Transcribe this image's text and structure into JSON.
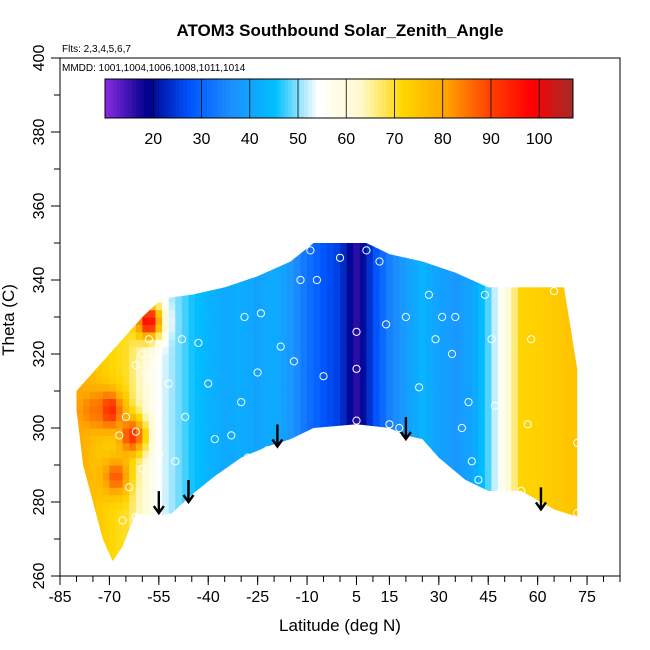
{
  "chart_data": {
    "type": "heatmap",
    "title": "ATOM3 Southbound Solar_Zenith_Angle",
    "subtitle_flights": "Flts: 2,3,4,5,6,7",
    "subtitle_dates": "MMDD: 1001,1004,1006,1008,1011,1014",
    "xlabel": "Latitude (deg N)",
    "ylabel": "Theta (C)",
    "xlim": [
      -85,
      85
    ],
    "ylim": [
      260,
      400
    ],
    "x_ticks": [
      "-85",
      "-70",
      "-55",
      "-40",
      "-25",
      "-10",
      "5",
      "15",
      "30",
      "45",
      "60",
      "75"
    ],
    "x_tick_values": [
      -85,
      -70,
      -55,
      -40,
      -25,
      -10,
      5,
      15,
      30,
      45,
      60,
      75
    ],
    "y_ticks": [
      "260",
      "280",
      "300",
      "320",
      "340",
      "360",
      "380",
      "400"
    ],
    "y_tick_values": [
      260,
      280,
      300,
      320,
      340,
      360,
      380,
      400
    ],
    "colorbar": {
      "range": [
        10,
        107
      ],
      "tick_labels": [
        "20",
        "30",
        "40",
        "50",
        "60",
        "70",
        "80",
        "90",
        "100"
      ],
      "tick_values": [
        20,
        30,
        40,
        50,
        60,
        70,
        80,
        90,
        100
      ],
      "colors": [
        "#8a2be2",
        "#00008b",
        "#0055ff",
        "#1e90ff",
        "#00bfff",
        "#ffffff",
        "#fffacd",
        "#ffd700",
        "#ffa500",
        "#ff4500",
        "#ff0000",
        "#a52a2a"
      ]
    },
    "sza_profile": [
      {
        "lat": -70,
        "sza": 72
      },
      {
        "lat": -65,
        "sza": 70
      },
      {
        "lat": -60,
        "sza": 62
      },
      {
        "lat": -55,
        "sza": 54
      },
      {
        "lat": -50,
        "sza": 50
      },
      {
        "lat": -45,
        "sza": 46
      },
      {
        "lat": -40,
        "sza": 43
      },
      {
        "lat": -35,
        "sza": 41
      },
      {
        "lat": -30,
        "sza": 42
      },
      {
        "lat": -25,
        "sza": 40
      },
      {
        "lat": -20,
        "sza": 42
      },
      {
        "lat": -15,
        "sza": 38
      },
      {
        "lat": -10,
        "sza": 32
      },
      {
        "lat": -5,
        "sza": 28
      },
      {
        "lat": 0,
        "sza": 25
      },
      {
        "lat": 5,
        "sza": 16
      },
      {
        "lat": 10,
        "sza": 26
      },
      {
        "lat": 15,
        "sza": 34
      },
      {
        "lat": 20,
        "sza": 39
      },
      {
        "lat": 25,
        "sza": 43
      },
      {
        "lat": 30,
        "sza": 40
      },
      {
        "lat": 35,
        "sza": 38
      },
      {
        "lat": 40,
        "sza": 40
      },
      {
        "lat": 45,
        "sza": 48
      },
      {
        "lat": 50,
        "sza": 58
      },
      {
        "lat": 55,
        "sza": 72
      },
      {
        "lat": 60,
        "sza": 73
      },
      {
        "lat": 65,
        "sza": 74
      },
      {
        "lat": 70,
        "sza": 75
      }
    ],
    "hotspots": [
      {
        "lat": -70,
        "theta": 305,
        "sza": 95
      },
      {
        "lat": -63,
        "theta": 298,
        "sza": 92
      },
      {
        "lat": -58,
        "theta": 329,
        "sza": 98
      },
      {
        "lat": -68,
        "theta": 287,
        "sza": 88
      },
      {
        "lat": -75,
        "theta": 305,
        "sza": 85
      }
    ],
    "domain_top": [
      {
        "lat": -68,
        "theta": 322
      },
      {
        "lat": -60,
        "theta": 330
      },
      {
        "lat": -54,
        "theta": 335
      },
      {
        "lat": -45,
        "theta": 336
      },
      {
        "lat": -35,
        "theta": 338
      },
      {
        "lat": -25,
        "theta": 341
      },
      {
        "lat": -15,
        "theta": 345
      },
      {
        "lat": -8,
        "theta": 350
      },
      {
        "lat": 8,
        "theta": 350
      },
      {
        "lat": 15,
        "theta": 347
      },
      {
        "lat": 25,
        "theta": 345
      },
      {
        "lat": 35,
        "theta": 342
      },
      {
        "lat": 45,
        "theta": 338
      },
      {
        "lat": 55,
        "theta": 338
      },
      {
        "lat": 68,
        "theta": 338
      },
      {
        "lat": 72,
        "theta": 316
      }
    ],
    "domain_bottom": [
      {
        "lat": 72,
        "theta": 276
      },
      {
        "lat": 65,
        "theta": 278
      },
      {
        "lat": 55,
        "theta": 283
      },
      {
        "lat": 45,
        "theta": 283
      },
      {
        "lat": 38,
        "theta": 286
      },
      {
        "lat": 30,
        "theta": 292
      },
      {
        "lat": 25,
        "theta": 297
      },
      {
        "lat": 20,
        "theta": 298
      },
      {
        "lat": 15,
        "theta": 300
      },
      {
        "lat": 5,
        "theta": 301
      },
      {
        "lat": -8,
        "theta": 300
      },
      {
        "lat": -15,
        "theta": 297
      },
      {
        "lat": -22,
        "theta": 295
      },
      {
        "lat": -30,
        "theta": 292
      },
      {
        "lat": -38,
        "theta": 287
      },
      {
        "lat": -45,
        "theta": 282
      },
      {
        "lat": -51,
        "theta": 277
      },
      {
        "lat": -56,
        "theta": 276
      },
      {
        "lat": -62,
        "theta": 277
      },
      {
        "lat": -66,
        "theta": 268
      },
      {
        "lat": -69,
        "theta": 264
      },
      {
        "lat": -72,
        "theta": 270
      },
      {
        "lat": -78,
        "theta": 290
      },
      {
        "lat": -80,
        "theta": 305
      },
      {
        "lat": -80,
        "theta": 310
      }
    ],
    "circles": [
      {
        "lat": -62,
        "theta": 276
      },
      {
        "lat": -64,
        "theta": 284
      },
      {
        "lat": -60,
        "theta": 289
      },
      {
        "lat": -55,
        "theta": 293
      },
      {
        "lat": -50,
        "theta": 291
      },
      {
        "lat": -47,
        "theta": 303
      },
      {
        "lat": -52,
        "theta": 312
      },
      {
        "lat": -58,
        "theta": 314
      },
      {
        "lat": -62,
        "theta": 317
      },
      {
        "lat": -55,
        "theta": 322
      },
      {
        "lat": -48,
        "theta": 324
      },
      {
        "lat": -43,
        "theta": 323
      },
      {
        "lat": -40,
        "theta": 312
      },
      {
        "lat": -38,
        "theta": 297
      },
      {
        "lat": -33,
        "theta": 298
      },
      {
        "lat": -30,
        "theta": 307
      },
      {
        "lat": -28,
        "theta": 292
      },
      {
        "lat": -22,
        "theta": 294
      },
      {
        "lat": -25,
        "theta": 315
      },
      {
        "lat": -29,
        "theta": 330
      },
      {
        "lat": -24,
        "theta": 331
      },
      {
        "lat": -18,
        "theta": 322
      },
      {
        "lat": -14,
        "theta": 318
      },
      {
        "lat": -12,
        "theta": 340
      },
      {
        "lat": -9,
        "theta": 348
      },
      {
        "lat": -7,
        "theta": 340
      },
      {
        "lat": -5,
        "theta": 314
      },
      {
        "lat": 0,
        "theta": 346
      },
      {
        "lat": 5,
        "theta": 316
      },
      {
        "lat": 5,
        "theta": 326
      },
      {
        "lat": 5,
        "theta": 302
      },
      {
        "lat": 8,
        "theta": 348
      },
      {
        "lat": 12,
        "theta": 345
      },
      {
        "lat": 14,
        "theta": 328
      },
      {
        "lat": 15,
        "theta": 301
      },
      {
        "lat": 18,
        "theta": 300
      },
      {
        "lat": 20,
        "theta": 330
      },
      {
        "lat": 24,
        "theta": 311
      },
      {
        "lat": 27,
        "theta": 336
      },
      {
        "lat": 29,
        "theta": 324
      },
      {
        "lat": 31,
        "theta": 330
      },
      {
        "lat": 34,
        "theta": 320
      },
      {
        "lat": 35,
        "theta": 330
      },
      {
        "lat": 37,
        "theta": 300
      },
      {
        "lat": 39,
        "theta": 307
      },
      {
        "lat": 40,
        "theta": 291
      },
      {
        "lat": 42,
        "theta": 286
      },
      {
        "lat": 44,
        "theta": 336
      },
      {
        "lat": 46,
        "theta": 324
      },
      {
        "lat": 47,
        "theta": 306
      },
      {
        "lat": 49,
        "theta": 283
      },
      {
        "lat": 55,
        "theta": 283
      },
      {
        "lat": 58,
        "theta": 324
      },
      {
        "lat": 57,
        "theta": 301
      },
      {
        "lat": 65,
        "theta": 337
      },
      {
        "lat": 72,
        "theta": 296
      },
      {
        "lat": 72,
        "theta": 277
      },
      {
        "lat": -67,
        "theta": 298
      },
      {
        "lat": -65,
        "theta": 303
      },
      {
        "lat": -58,
        "theta": 324
      },
      {
        "lat": -60,
        "theta": 320
      },
      {
        "lat": -62,
        "theta": 299
      },
      {
        "lat": -66,
        "theta": 275
      }
    ],
    "arrows": [
      {
        "lat": -55,
        "theta": 277
      },
      {
        "lat": -46,
        "theta": 280
      },
      {
        "lat": -19,
        "theta": 295
      },
      {
        "lat": 20,
        "theta": 297
      },
      {
        "lat": 61,
        "theta": 278
      }
    ]
  }
}
